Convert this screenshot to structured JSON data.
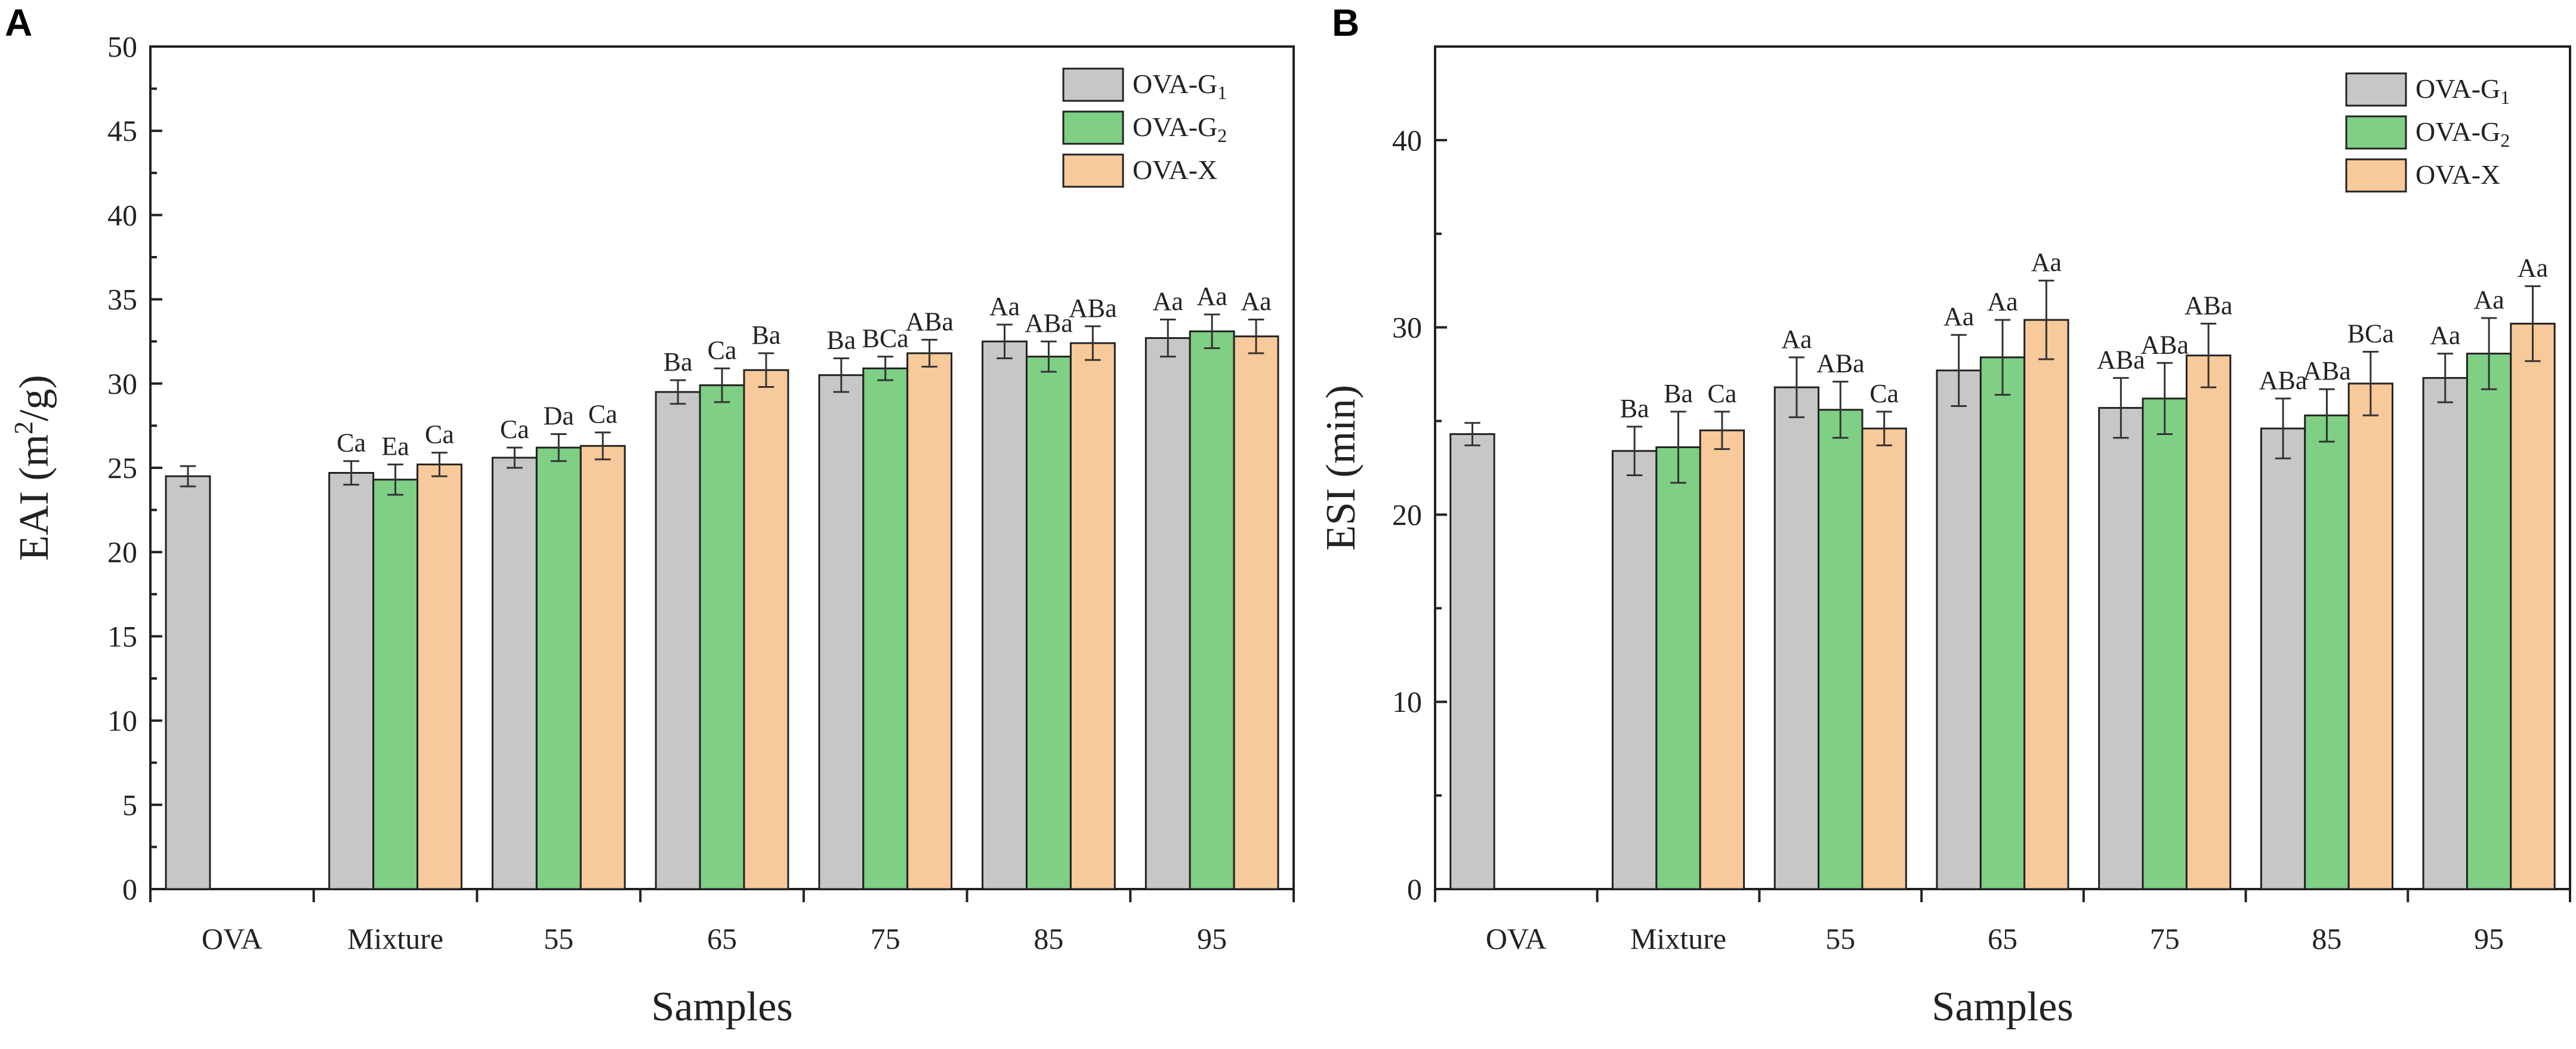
{
  "colors": {
    "OVA-G1": "#c7c7c7",
    "OVA-G2": "#7fcf85",
    "OVA-X": "#f8c99a"
  },
  "legend_sub": [
    "1",
    "2",
    ""
  ],
  "chart_data": [
    {
      "type": "bar",
      "panel": "A",
      "title": "",
      "xlabel": "Samples",
      "ylabel_base": "EAI (m",
      "ylabel_sup": "2",
      "ylabel_end": "/g)",
      "ylim": [
        0,
        50
      ],
      "yticks": [
        0,
        5,
        10,
        15,
        20,
        25,
        30,
        35,
        40,
        45,
        50
      ],
      "categories": [
        "OVA",
        "Mixture",
        "55",
        "65",
        "75",
        "85",
        "95"
      ],
      "legend_position": "top-right",
      "series": [
        {
          "name": "OVA-G1",
          "legend_base": "OVA-G",
          "legend_sub": "1",
          "values": [
            24.5,
            24.7,
            25.6,
            29.5,
            30.5,
            32.5,
            32.7
          ],
          "errors": [
            0.6,
            0.7,
            0.6,
            0.7,
            1.0,
            1.0,
            1.1
          ],
          "labels": [
            "",
            "Ca",
            "Ca",
            "Ba",
            "Ba",
            "Aa",
            "Aa"
          ]
        },
        {
          "name": "OVA-G2",
          "legend_base": "OVA-G",
          "legend_sub": "2",
          "values": [
            null,
            24.3,
            26.2,
            29.9,
            30.9,
            31.6,
            33.1
          ],
          "errors": [
            null,
            0.9,
            0.8,
            1.0,
            0.7,
            0.9,
            1.0
          ],
          "labels": [
            "",
            "Ea",
            "Da",
            "Ca",
            "BCa",
            "ABa",
            "Aa"
          ]
        },
        {
          "name": "OVA-X",
          "legend_base": "OVA-X",
          "legend_sub": "",
          "values": [
            null,
            25.2,
            26.3,
            30.8,
            31.8,
            32.4,
            32.8
          ],
          "errors": [
            null,
            0.7,
            0.8,
            1.0,
            0.8,
            1.0,
            1.0
          ],
          "labels": [
            "",
            "Ca",
            "Ca",
            "Ba",
            "ABa",
            "ABa",
            "Aa"
          ]
        }
      ]
    },
    {
      "type": "bar",
      "panel": "B",
      "title": "",
      "xlabel": "Samples",
      "ylabel_base": "ESI (min)",
      "ylabel_sup": "",
      "ylabel_end": "",
      "ylim": [
        0,
        45
      ],
      "yticks": [
        0,
        10,
        20,
        30,
        40
      ],
      "categories": [
        "OVA",
        "Mixture",
        "55",
        "65",
        "75",
        "85",
        "95"
      ],
      "legend_position": "top-right",
      "series": [
        {
          "name": "OVA-G1",
          "legend_base": "OVA-G",
          "legend_sub": "1",
          "values": [
            24.3,
            23.4,
            26.8,
            27.7,
            25.7,
            24.6,
            27.3
          ],
          "errors": [
            0.6,
            1.3,
            1.6,
            1.9,
            1.6,
            1.6,
            1.3
          ],
          "labels": [
            "",
            "Ba",
            "Aa",
            "Aa",
            "ABa",
            "ABa",
            "Aa"
          ]
        },
        {
          "name": "OVA-G2",
          "legend_base": "OVA-G",
          "legend_sub": "2",
          "values": [
            null,
            23.6,
            25.6,
            28.4,
            26.2,
            25.3,
            28.6
          ],
          "errors": [
            null,
            1.9,
            1.5,
            2.0,
            1.9,
            1.4,
            1.9
          ],
          "labels": [
            "",
            "Ba",
            "ABa",
            "Aa",
            "ABa",
            "ABa",
            "Aa"
          ]
        },
        {
          "name": "OVA-X",
          "legend_base": "OVA-X",
          "legend_sub": "",
          "values": [
            null,
            24.5,
            24.6,
            30.4,
            28.5,
            27.0,
            30.2
          ],
          "errors": [
            null,
            1.0,
            0.9,
            2.1,
            1.7,
            1.7,
            2.0
          ],
          "labels": [
            "",
            "Ca",
            "Ca",
            "Aa",
            "ABa",
            "BCa",
            "Aa"
          ]
        }
      ]
    }
  ]
}
